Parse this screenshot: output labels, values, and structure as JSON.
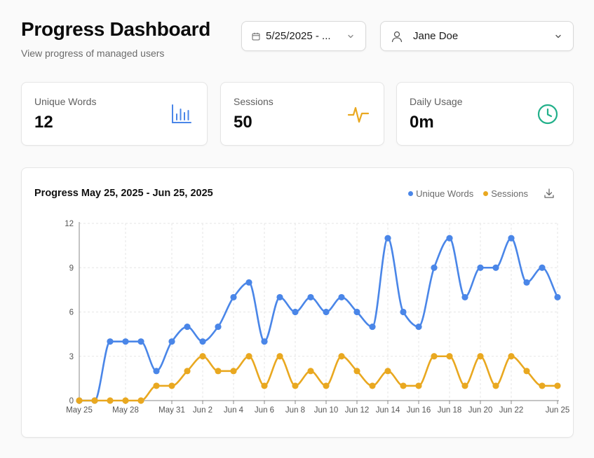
{
  "header": {
    "title": "Progress Dashboard",
    "subtitle": "View progress of managed users"
  },
  "filters": {
    "date_range": "5/25/2025 - ...",
    "user": "Jane Doe"
  },
  "stats": [
    {
      "label": "Unique Words",
      "value": "12",
      "icon": "bar-chart-icon",
      "color": "#4a86e8"
    },
    {
      "label": "Sessions",
      "value": "50",
      "icon": "activity-icon",
      "color": "#e9a820"
    },
    {
      "label": "Daily Usage",
      "value": "0m",
      "icon": "clock-icon",
      "color": "#22b08a"
    }
  ],
  "chart_data": {
    "type": "line",
    "title": "Progress May 25, 2025 - Jun 25, 2025",
    "x": [
      "May 25",
      "May 26",
      "May 27",
      "May 28",
      "May 29",
      "May 30",
      "May 31",
      "Jun 1",
      "Jun 2",
      "Jun 3",
      "Jun 4",
      "Jun 5",
      "Jun 6",
      "Jun 7",
      "Jun 8",
      "Jun 9",
      "Jun 10",
      "Jun 11",
      "Jun 12",
      "Jun 13",
      "Jun 14",
      "Jun 15",
      "Jun 16",
      "Jun 17",
      "Jun 18",
      "Jun 19",
      "Jun 20",
      "Jun 21",
      "Jun 22",
      "Jun 23",
      "Jun 24",
      "Jun 25"
    ],
    "x_tick_labels": [
      {
        "index": 0,
        "label": "May 25"
      },
      {
        "index": 3,
        "label": "May 28"
      },
      {
        "index": 6,
        "label": "May 31"
      },
      {
        "index": 8,
        "label": "Jun 2"
      },
      {
        "index": 10,
        "label": "Jun 4"
      },
      {
        "index": 12,
        "label": "Jun 6"
      },
      {
        "index": 14,
        "label": "Jun 8"
      },
      {
        "index": 16,
        "label": "Jun 10"
      },
      {
        "index": 18,
        "label": "Jun 12"
      },
      {
        "index": 20,
        "label": "Jun 14"
      },
      {
        "index": 22,
        "label": "Jun 16"
      },
      {
        "index": 24,
        "label": "Jun 18"
      },
      {
        "index": 26,
        "label": "Jun 20"
      },
      {
        "index": 28,
        "label": "Jun 22"
      },
      {
        "index": 31,
        "label": "Jun 25"
      }
    ],
    "yticks": [
      0,
      3,
      6,
      9,
      12
    ],
    "ylim": [
      0,
      12
    ],
    "grid": true,
    "legend_position": "top-right",
    "series": [
      {
        "name": "Unique Words",
        "color": "#4a86e8",
        "values": [
          0,
          0,
          4,
          4,
          4,
          2,
          4,
          5,
          4,
          5,
          7,
          8,
          4,
          7,
          6,
          7,
          6,
          7,
          6,
          5,
          11,
          6,
          5,
          9,
          11,
          7,
          9,
          9,
          11,
          8,
          9,
          7
        ]
      },
      {
        "name": "Sessions",
        "color": "#e9a820",
        "values": [
          0,
          0,
          0,
          0,
          0,
          1,
          1,
          2,
          3,
          2,
          2,
          3,
          1,
          3,
          1,
          2,
          1,
          3,
          2,
          1,
          2,
          1,
          1,
          3,
          3,
          1,
          3,
          1,
          3,
          2,
          1,
          1
        ]
      }
    ]
  }
}
